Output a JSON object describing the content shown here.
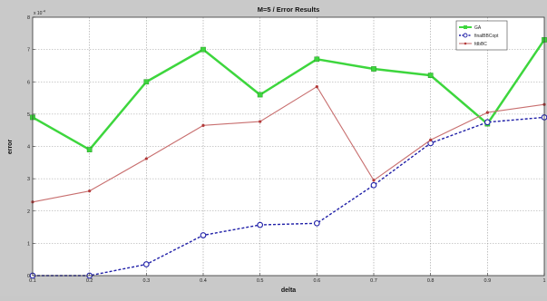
{
  "chart_data": {
    "type": "line",
    "title": "M=5 / Error Results",
    "xlabel": "delta",
    "ylabel": "error",
    "y_exponent_label": "x 10",
    "y_exponent_power": "-4",
    "xlim": [
      0.1,
      1.0
    ],
    "ylim": [
      0,
      8
    ],
    "x_ticks": [
      0.1,
      0.2,
      0.3,
      0.4,
      0.5,
      0.6,
      0.7,
      0.8,
      0.9,
      1
    ],
    "x_tick_labels": [
      "0.1",
      "0.2",
      "0.3",
      "0.4",
      "0.5",
      "0.6",
      "0.7",
      "0.8",
      "0.9",
      "1"
    ],
    "y_ticks": [
      0,
      1,
      2,
      3,
      4,
      5,
      6,
      7,
      8
    ],
    "y_tick_labels": [
      "0",
      "1",
      "2",
      "3",
      "4",
      "5",
      "6",
      "7",
      "8"
    ],
    "grid": true,
    "legend_position": "top-right",
    "x": [
      0.1,
      0.2,
      0.3,
      0.4,
      0.5,
      0.6,
      0.7,
      0.8,
      0.9,
      1.0
    ],
    "series": [
      {
        "name": "GA",
        "color": "#3dd63d",
        "marker": "square",
        "dashed": false,
        "width": 2.5,
        "values": [
          4.9,
          3.9,
          6.0,
          7.0,
          5.6,
          6.7,
          6.4,
          6.2,
          4.7,
          7.3
        ]
      },
      {
        "name": "finalBBCopt",
        "color": "#2020a8",
        "marker": "circle",
        "dashed": true,
        "width": 1.4,
        "values": [
          0.0,
          0.0,
          0.35,
          1.25,
          1.57,
          1.62,
          2.8,
          4.1,
          4.75,
          4.9
        ]
      },
      {
        "name": "fdbBC",
        "color": "#c86f6f",
        "marker": "dot",
        "dashed": false,
        "width": 1.1,
        "values": [
          2.28,
          2.62,
          3.62,
          4.65,
          4.77,
          5.85,
          2.95,
          4.2,
          5.05,
          5.3
        ]
      }
    ]
  }
}
